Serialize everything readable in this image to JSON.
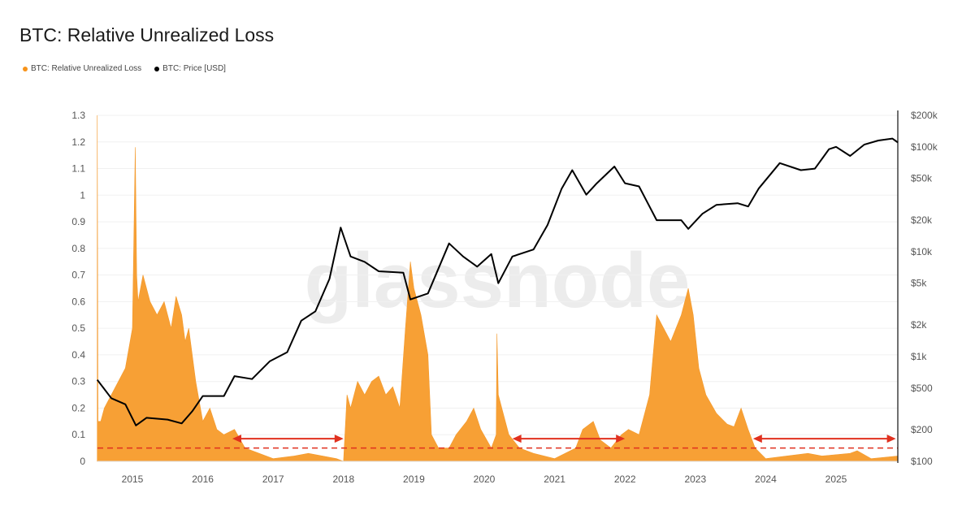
{
  "title": "BTC: Relative Unrealized Loss",
  "watermark": "glassnode",
  "chart_data": {
    "type": "area",
    "title": "BTC: Relative Unrealized Loss",
    "legend": [
      {
        "label": "BTC: Relative Unrealized Loss",
        "color": "#f7931a"
      },
      {
        "label": "BTC: Price [USD]",
        "color": "#000000"
      }
    ],
    "legend_placement": "top-left",
    "x_ticks": [
      "2015",
      "2016",
      "2017",
      "2018",
      "2019",
      "2020",
      "2021",
      "2022",
      "2023",
      "2024",
      "2025"
    ],
    "x_range": [
      2014.5,
      2025.88
    ],
    "y_left_ticks": [
      "0",
      "0.1",
      "0.2",
      "0.3",
      "0.4",
      "0.5",
      "0.6",
      "0.7",
      "0.8",
      "0.9",
      "1",
      "1.1",
      "1.2",
      "1.3"
    ],
    "y_left_range": [
      0,
      1.3
    ],
    "y_right_ticks": [
      {
        "label": "$100",
        "value": 100
      },
      {
        "label": "$200",
        "value": 200
      },
      {
        "label": "$500",
        "value": 500
      },
      {
        "label": "$1k",
        "value": 1000
      },
      {
        "label": "$2k",
        "value": 2000
      },
      {
        "label": "$5k",
        "value": 5000
      },
      {
        "label": "$10k",
        "value": 10000
      },
      {
        "label": "$20k",
        "value": 20000
      },
      {
        "label": "$50k",
        "value": 50000
      },
      {
        "label": "$100k",
        "value": 100000
      },
      {
        "label": "$200k",
        "value": 200000
      }
    ],
    "y_right_scale": "log",
    "y_right_range": [
      100,
      200000
    ],
    "grid": true,
    "threshold_line": {
      "value": 0.05,
      "color": "#e0301e",
      "style": "dashed"
    },
    "arrows": [
      {
        "from": 2016.42,
        "to": 2018.0,
        "value": 0.085
      },
      {
        "from": 2020.4,
        "to": 2022.0,
        "value": 0.085
      },
      {
        "from": 2023.82,
        "to": 2025.85,
        "value": 0.085
      }
    ],
    "series": [
      {
        "name": "BTC: Relative Unrealized Loss",
        "color": "#f7a035",
        "x": [
          2014.5,
          2014.51,
          2014.55,
          2014.6,
          2014.7,
          2014.8,
          2014.9,
          2015.0,
          2015.04,
          2015.06,
          2015.08,
          2015.15,
          2015.25,
          2015.35,
          2015.45,
          2015.55,
          2015.62,
          2015.7,
          2015.75,
          2015.8,
          2015.9,
          2016.0,
          2016.1,
          2016.2,
          2016.3,
          2016.45,
          2016.6,
          2016.8,
          2017.0,
          2017.3,
          2017.5,
          2017.7,
          2017.9,
          2018.0,
          2018.05,
          2018.1,
          2018.2,
          2018.3,
          2018.4,
          2018.5,
          2018.6,
          2018.7,
          2018.8,
          2018.88,
          2018.95,
          2019.0,
          2019.1,
          2019.2,
          2019.25,
          2019.35,
          2019.5,
          2019.6,
          2019.75,
          2019.85,
          2019.95,
          2020.1,
          2020.17,
          2020.18,
          2020.2,
          2020.25,
          2020.35,
          2020.5,
          2020.7,
          2021.0,
          2021.3,
          2021.4,
          2021.55,
          2021.65,
          2021.8,
          2021.95,
          2022.05,
          2022.2,
          2022.35,
          2022.45,
          2022.55,
          2022.65,
          2022.8,
          2022.9,
          2022.97,
          2023.05,
          2023.15,
          2023.3,
          2023.45,
          2023.55,
          2023.65,
          2023.75,
          2023.85,
          2024.0,
          2024.3,
          2024.6,
          2024.8,
          2025.2,
          2025.3,
          2025.5,
          2025.88
        ],
        "values": [
          1.3,
          0.15,
          0.15,
          0.2,
          0.25,
          0.3,
          0.35,
          0.5,
          1.18,
          0.7,
          0.6,
          0.7,
          0.6,
          0.55,
          0.6,
          0.5,
          0.62,
          0.55,
          0.45,
          0.5,
          0.3,
          0.15,
          0.2,
          0.12,
          0.1,
          0.12,
          0.05,
          0.03,
          0.01,
          0.02,
          0.03,
          0.02,
          0.01,
          0.0,
          0.25,
          0.2,
          0.3,
          0.25,
          0.3,
          0.32,
          0.25,
          0.28,
          0.2,
          0.5,
          0.75,
          0.65,
          0.55,
          0.4,
          0.1,
          0.05,
          0.05,
          0.1,
          0.15,
          0.2,
          0.12,
          0.05,
          0.1,
          0.48,
          0.25,
          0.2,
          0.1,
          0.05,
          0.03,
          0.01,
          0.05,
          0.12,
          0.15,
          0.08,
          0.05,
          0.1,
          0.12,
          0.1,
          0.25,
          0.55,
          0.5,
          0.45,
          0.55,
          0.65,
          0.55,
          0.35,
          0.25,
          0.18,
          0.14,
          0.13,
          0.2,
          0.12,
          0.05,
          0.01,
          0.02,
          0.03,
          0.02,
          0.03,
          0.04,
          0.01,
          0.02
        ]
      },
      {
        "name": "BTC: Price [USD]",
        "color": "#000000",
        "x": [
          2014.5,
          2014.7,
          2014.9,
          2015.05,
          2015.2,
          2015.5,
          2015.7,
          2015.85,
          2016.0,
          2016.3,
          2016.45,
          2016.7,
          2016.95,
          2017.2,
          2017.4,
          2017.6,
          2017.8,
          2017.96,
          2018.1,
          2018.3,
          2018.5,
          2018.85,
          2018.95,
          2019.2,
          2019.5,
          2019.7,
          2019.9,
          2020.1,
          2020.2,
          2020.4,
          2020.7,
          2020.9,
          2021.1,
          2021.25,
          2021.45,
          2021.6,
          2021.85,
          2022.0,
          2022.2,
          2022.45,
          2022.8,
          2022.9,
          2023.1,
          2023.3,
          2023.6,
          2023.75,
          2023.9,
          2024.2,
          2024.5,
          2024.7,
          2024.9,
          2025.0,
          2025.2,
          2025.4,
          2025.6,
          2025.8,
          2025.88
        ],
        "values": [
          600,
          400,
          350,
          220,
          260,
          250,
          230,
          300,
          420,
          420,
          650,
          610,
          900,
          1100,
          2200,
          2700,
          5500,
          17000,
          9000,
          8000,
          6500,
          6300,
          3500,
          4000,
          12000,
          9000,
          7200,
          9500,
          5000,
          9000,
          10500,
          18000,
          40000,
          60000,
          35000,
          45000,
          65000,
          45000,
          42000,
          20000,
          20000,
          16500,
          23000,
          28000,
          29000,
          27000,
          40000,
          70000,
          60000,
          62000,
          95000,
          100000,
          82000,
          105000,
          115000,
          120000,
          110000
        ]
      }
    ]
  }
}
